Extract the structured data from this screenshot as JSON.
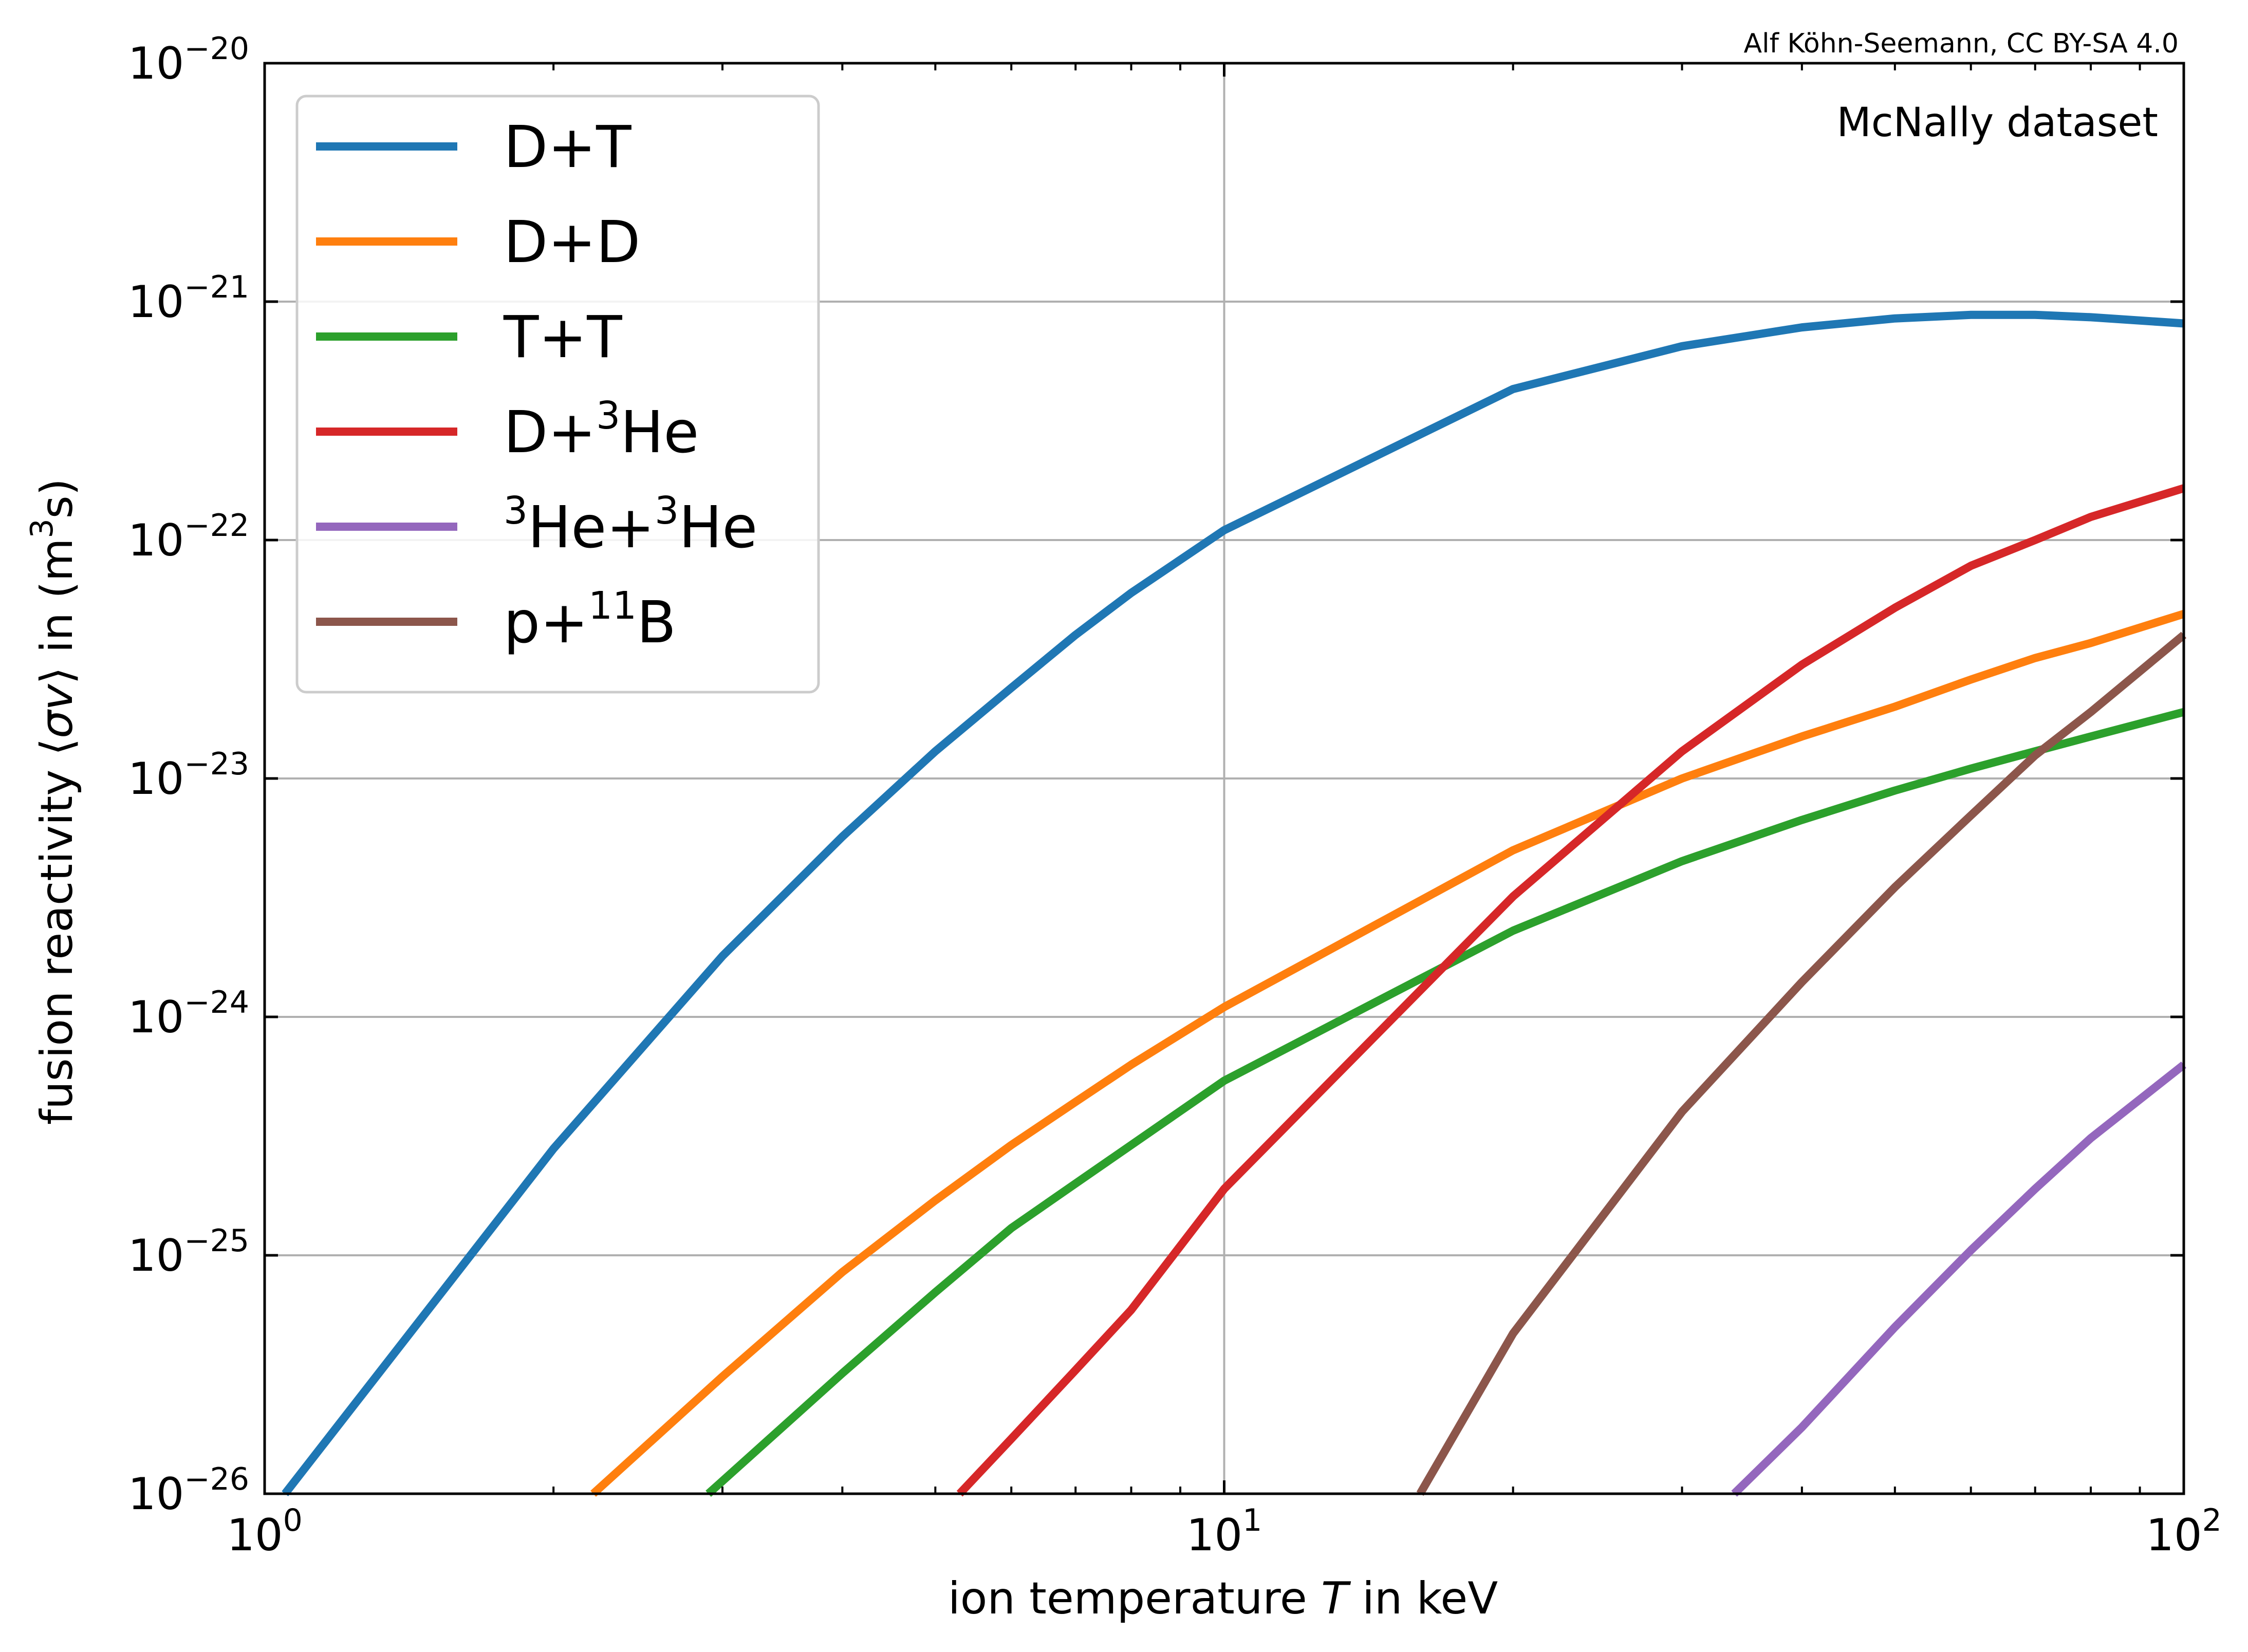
{
  "attribution": "Alf Köhn-Seemann, CC BY-SA 4.0",
  "chart_data": {
    "type": "line",
    "annotation": "McNally dataset",
    "xlabel": {
      "pre": "ion temperature ",
      "var": "T",
      "post": " in keV"
    },
    "ylabel": {
      "pre": "fusion reactivity ⟨",
      "var": "σv",
      "post": "⟩ in (m",
      "sup": "3",
      "end": "s)"
    },
    "xscale": "log",
    "yscale": "log",
    "xlim": [
      1,
      100
    ],
    "ylim": [
      1e-26,
      1e-20
    ],
    "grid": true,
    "legend_position": "upper-left",
    "x_ticks": [
      {
        "value": 1,
        "base": "10",
        "exp": "0"
      },
      {
        "value": 10,
        "base": "10",
        "exp": "1"
      },
      {
        "value": 100,
        "base": "10",
        "exp": "2"
      }
    ],
    "y_ticks": [
      {
        "value": 1e-26,
        "base": "10",
        "exp": "−26"
      },
      {
        "value": 1e-25,
        "base": "10",
        "exp": "−25"
      },
      {
        "value": 1e-24,
        "base": "10",
        "exp": "−24"
      },
      {
        "value": 1e-23,
        "base": "10",
        "exp": "−23"
      },
      {
        "value": 1e-22,
        "base": "10",
        "exp": "−22"
      },
      {
        "value": 1e-21,
        "base": "10",
        "exp": "−21"
      },
      {
        "value": 1e-20,
        "base": "10",
        "exp": "−20"
      }
    ],
    "series": [
      {
        "name": "D+T",
        "label_parts": [
          {
            "t": "D+T"
          }
        ],
        "color": "#1f77b4",
        "x": [
          1.05,
          2,
          3,
          4,
          5,
          6,
          7,
          8,
          10,
          20,
          30,
          40,
          50,
          60,
          70,
          80,
          100
        ],
        "y": [
          1e-26,
          2.8e-25,
          1.8e-24,
          5.7e-24,
          1.3e-23,
          2.4e-23,
          4e-23,
          6e-23,
          1.1e-22,
          4.3e-22,
          6.5e-22,
          7.8e-22,
          8.5e-22,
          8.8e-22,
          8.8e-22,
          8.6e-22,
          8.1e-22
        ]
      },
      {
        "name": "D+D",
        "label_parts": [
          {
            "t": "D+D"
          }
        ],
        "color": "#ff7f0e",
        "x": [
          2.2,
          3,
          4,
          5,
          6,
          7,
          8,
          10,
          20,
          30,
          40,
          50,
          60,
          70,
          80,
          100
        ],
        "y": [
          1e-26,
          3.1e-26,
          8.5e-26,
          1.7e-25,
          2.9e-25,
          4.4e-25,
          6.3e-25,
          1.1e-24,
          5e-24,
          1e-23,
          1.5e-23,
          2e-23,
          2.6e-23,
          3.2e-23,
          3.7e-23,
          4.9e-23
        ]
      },
      {
        "name": "T+T",
        "label_parts": [
          {
            "t": "T+T"
          }
        ],
        "color": "#2ca02c",
        "x": [
          2.9,
          4,
          5,
          6,
          7,
          8,
          10,
          20,
          30,
          40,
          50,
          60,
          70,
          80,
          100
        ],
        "y": [
          1e-26,
          3.2e-26,
          7e-26,
          1.3e-25,
          2e-25,
          2.9e-25,
          5.4e-25,
          2.3e-24,
          4.5e-24,
          6.7e-24,
          8.9e-24,
          1.1e-23,
          1.3e-23,
          1.5e-23,
          1.9e-23
        ]
      },
      {
        "name": "D+3He",
        "label_parts": [
          {
            "t": "D+"
          },
          {
            "t": "3",
            "sup": true
          },
          {
            "t": "He"
          }
        ],
        "color": "#d62728",
        "x": [
          5.3,
          6,
          7,
          8,
          10,
          20,
          30,
          40,
          50,
          60,
          70,
          80,
          100
        ],
        "y": [
          1e-26,
          1.7e-26,
          3.3e-26,
          5.9e-26,
          1.9e-25,
          3.2e-24,
          1.3e-23,
          3e-23,
          5.2e-23,
          7.8e-23,
          1e-22,
          1.25e-22,
          1.65e-22
        ]
      },
      {
        "name": "3He+3He",
        "label_parts": [
          {
            "t": "3",
            "sup": true
          },
          {
            "t": "He+"
          },
          {
            "t": "3",
            "sup": true
          },
          {
            "t": "He"
          }
        ],
        "color": "#9467bd",
        "x": [
          34,
          40,
          50,
          60,
          70,
          80,
          100
        ],
        "y": [
          1e-26,
          1.9e-26,
          5e-26,
          1.05e-25,
          1.9e-25,
          3.1e-25,
          6.3e-25
        ]
      },
      {
        "name": "p+11B",
        "label_parts": [
          {
            "t": "p+"
          },
          {
            "t": "11",
            "sup": true
          },
          {
            "t": "B"
          }
        ],
        "color": "#8c564b",
        "x": [
          16,
          20,
          30,
          40,
          50,
          60,
          70,
          80,
          100
        ],
        "y": [
          1e-26,
          4.7e-26,
          4e-25,
          1.4e-24,
          3.5e-24,
          7e-24,
          1.25e-23,
          1.9e-23,
          4e-23
        ]
      }
    ]
  }
}
